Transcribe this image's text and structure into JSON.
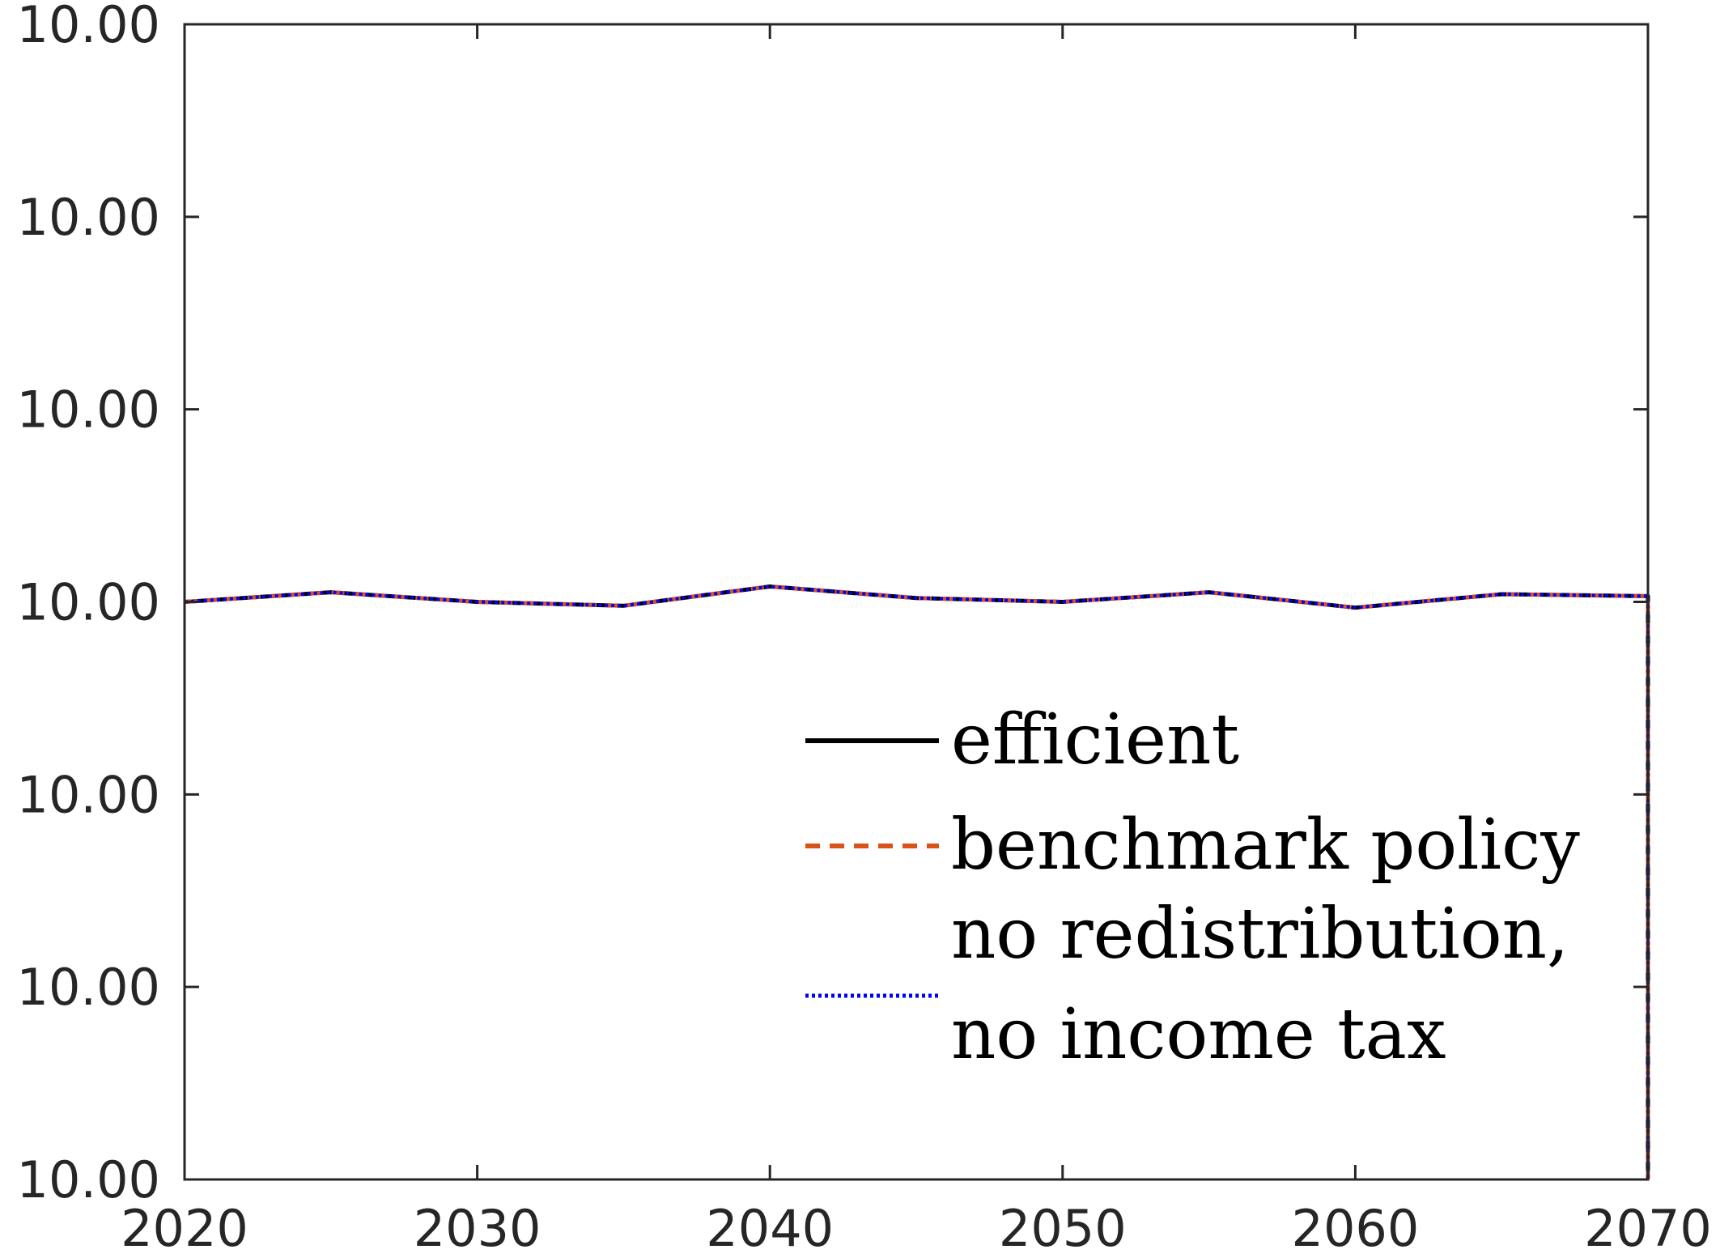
{
  "chart_data": {
    "type": "line",
    "title": "",
    "xlabel": "",
    "ylabel": "",
    "xlim": [
      2020,
      2070
    ],
    "ylim": [
      0,
      6
    ],
    "x_ticks": [
      2020,
      2030,
      2040,
      2050,
      2060,
      2070
    ],
    "x_tick_labels": [
      "2020",
      "2030",
      "2040",
      "2050",
      "2060",
      "2070"
    ],
    "y_ticks": [
      0,
      1,
      2,
      3,
      4,
      5,
      6
    ],
    "y_tick_labels": [
      "10.00",
      "10.00",
      "10.00",
      "10.00",
      "10.00",
      "10.00",
      "10.00"
    ],
    "grid": false,
    "legend_position": "lower-right",
    "x": [
      2020,
      2025,
      2030,
      2035,
      2040,
      2045,
      2050,
      2055,
      2060,
      2065,
      2070
    ],
    "series": [
      {
        "name": "efficient",
        "color": "#000000",
        "style": "solid",
        "values": [
          3.0,
          3.05,
          3.0,
          2.98,
          3.08,
          3.02,
          3.0,
          3.05,
          2.97,
          3.04,
          3.03
        ]
      },
      {
        "name": "benchmark policy",
        "color": "#D95319",
        "style": "dashed",
        "values": [
          3.0,
          3.05,
          3.0,
          2.98,
          3.08,
          3.02,
          3.0,
          3.05,
          2.97,
          3.04,
          3.03
        ]
      },
      {
        "name": [
          "no redistribution,",
          "no income tax"
        ],
        "color": "#0000FF",
        "style": "dotted",
        "values": [
          3.0,
          3.05,
          3.0,
          2.98,
          3.08,
          3.02,
          3.0,
          3.05,
          2.97,
          3.04,
          3.03
        ]
      }
    ],
    "terminal_drop_value": 0
  }
}
